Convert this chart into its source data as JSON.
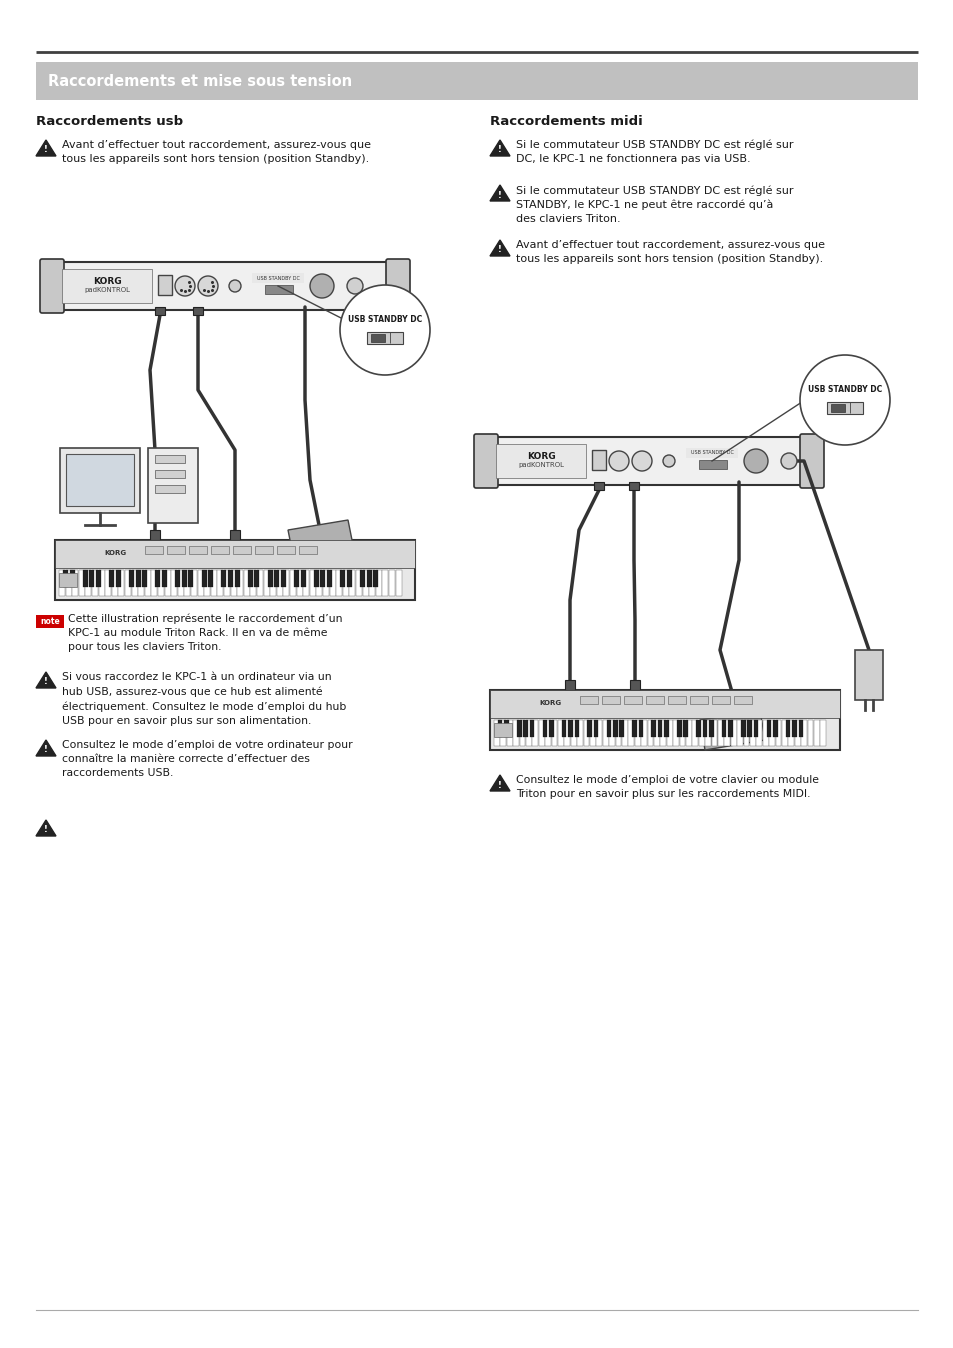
{
  "page_bg": "#ffffff",
  "top_line_color": "#404040",
  "header_bar_color": "#c0c0c0",
  "header_text_color": "#ffffff",
  "text_color": "#1a1a1a",
  "warn_icon_color": "#333333",
  "note_bg": "#333333",
  "section_title_left": "Raccordements usb",
  "section_title_right": "Raccordements midi",
  "header_text": "Raccordements et mise sous tension",
  "left_warning1": "Avant d’effectuer tout raccordement, assurez-vous que\ntous les appareils sont hors tension (position Standby).",
  "left_note_text": "Cette illustration représente le raccordement d’un\nKPC-1 au module Triton Rack. Il en va de même\npour tous les claviers Triton.",
  "left_warning2": "Si vous raccordez le KPC-1 à un ordinateur via un\nhub USB, assurez-vous que ce hub est alimenté\nélectriquement. Consultez le mode d’emploi du hub\nUSB pour en savoir plus sur son alimentation.",
  "left_warning3": "Consultez le mode d’emploi de votre ordinateur pour\nconnaître la manière correcte d’effectuer des\nraccordements USB.",
  "right_warning1": "Si le commutateur USB STANDBY DC est réglé sur\nDC, le KPC-1 ne fonctionnera pas via USB.",
  "right_warning2": "Si le commutateur USB STANDBY DC est réglé sur\nSTANDBY, le KPC-1 ne peut être raccordé qu’à\ndes claviers Triton.",
  "right_warning3": "Avant d’effectuer tout raccordement, assurez-vous que\ntous les appareils sont hors tension (position Standby).",
  "right_warning4": "Consultez le mode d’emploi de votre clavier ou module\nTriton pour en savoir plus sur les raccordements MIDI."
}
